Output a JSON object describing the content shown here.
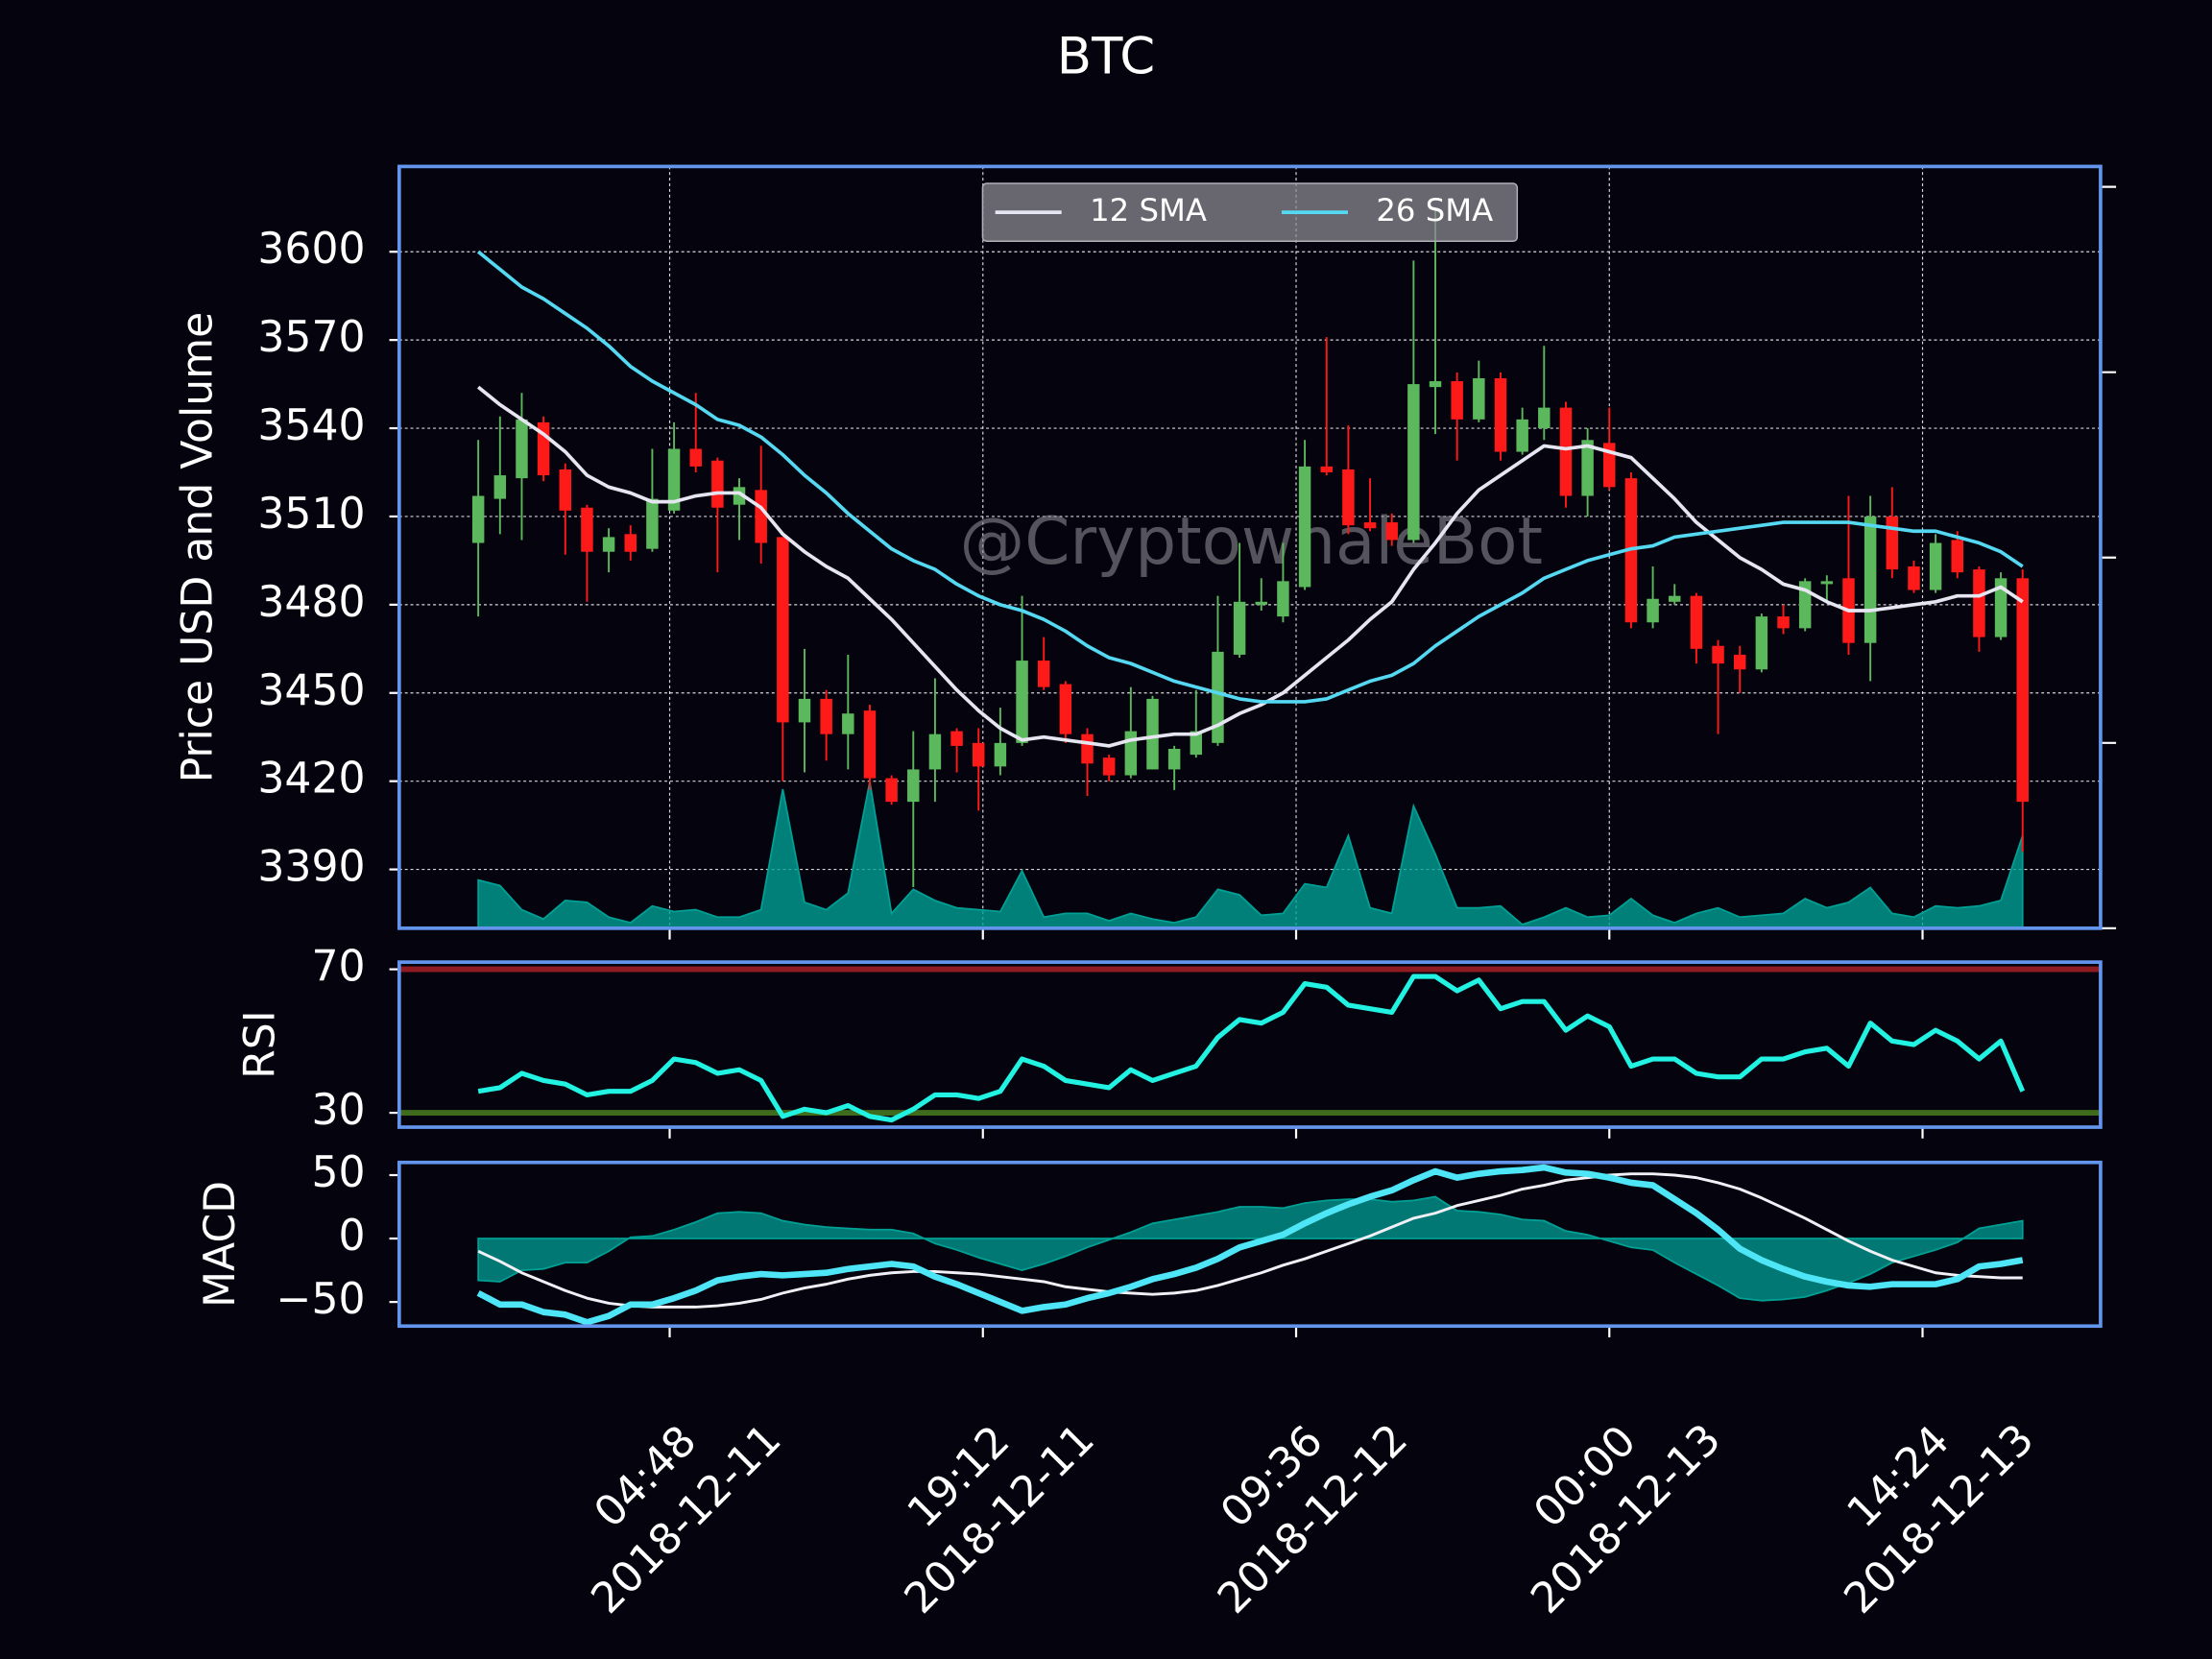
{
  "chart_data": {
    "type": "candlestick",
    "title": "BTC",
    "ylabel": "Price USD and Volume",
    "watermark": "@CryptowhaleBot",
    "x": [
      "2018-12-10 20:00",
      "2018-12-10 21:00",
      "2018-12-10 22:00",
      "2018-12-10 23:00",
      "2018-12-11 00:00",
      "2018-12-11 01:00",
      "2018-12-11 02:00",
      "2018-12-11 03:00",
      "2018-12-11 04:00",
      "2018-12-11 05:00",
      "2018-12-11 06:00",
      "2018-12-11 07:00",
      "2018-12-11 08:00",
      "2018-12-11 09:00",
      "2018-12-11 10:00",
      "2018-12-11 11:00",
      "2018-12-11 12:00",
      "2018-12-11 13:00",
      "2018-12-11 14:00",
      "2018-12-11 15:00",
      "2018-12-11 16:00",
      "2018-12-11 17:00",
      "2018-12-11 18:00",
      "2018-12-11 19:00",
      "2018-12-11 20:00",
      "2018-12-11 21:00",
      "2018-12-11 22:00",
      "2018-12-11 23:00",
      "2018-12-12 00:00",
      "2018-12-12 01:00",
      "2018-12-12 02:00",
      "2018-12-12 03:00",
      "2018-12-12 04:00",
      "2018-12-12 05:00",
      "2018-12-12 06:00",
      "2018-12-12 07:00",
      "2018-12-12 08:00",
      "2018-12-12 09:00",
      "2018-12-12 10:00",
      "2018-12-12 11:00",
      "2018-12-12 12:00",
      "2018-12-12 13:00",
      "2018-12-12 14:00",
      "2018-12-12 15:00",
      "2018-12-12 16:00",
      "2018-12-12 17:00",
      "2018-12-12 18:00",
      "2018-12-12 19:00",
      "2018-12-12 20:00",
      "2018-12-12 21:00",
      "2018-12-12 22:00",
      "2018-12-12 23:00",
      "2018-12-13 00:00",
      "2018-12-13 01:00",
      "2018-12-13 02:00",
      "2018-12-13 03:00",
      "2018-12-13 04:00",
      "2018-12-13 05:00",
      "2018-12-13 06:00",
      "2018-12-13 07:00",
      "2018-12-13 08:00",
      "2018-12-13 09:00",
      "2018-12-13 10:00",
      "2018-12-13 11:00",
      "2018-12-13 12:00",
      "2018-12-13 13:00",
      "2018-12-13 14:00",
      "2018-12-13 15:00",
      "2018-12-13 16:00",
      "2018-12-13 17:00",
      "2018-12-13 18:00",
      "2018-12-13 19:00"
    ],
    "xlim": [
      "2018-12-10 16:22",
      "2018-12-13 22:35"
    ],
    "xticks": [
      {
        "value": "2018-12-11 04:48",
        "label": [
          "04:48",
          "2018-12-11"
        ]
      },
      {
        "value": "2018-12-11 19:12",
        "label": [
          "19:12",
          "2018-12-11"
        ]
      },
      {
        "value": "2018-12-12 09:36",
        "label": [
          "09:36",
          "2018-12-12"
        ]
      },
      {
        "value": "2018-12-13 00:00",
        "label": [
          "00:00",
          "2018-12-13"
        ]
      },
      {
        "value": "2018-12-13 14:24",
        "label": [
          "14:24",
          "2018-12-13"
        ]
      }
    ],
    "ylim": [
      3370,
      3629
    ],
    "yticks": [
      3390,
      3420,
      3450,
      3480,
      3510,
      3540,
      3570,
      3600
    ],
    "grid": true,
    "y2lim": [
      0,
      4.11
    ],
    "y2ticks": [
      0,
      1,
      2,
      3,
      4
    ],
    "up_color": "#5cb85c",
    "down_color": "#ff1a1a",
    "open": [
      3501,
      3516,
      3523,
      3542,
      3526,
      3513,
      3498,
      3504,
      3499,
      3512,
      3533,
      3529,
      3514,
      3519,
      3503,
      3440,
      3448,
      3436,
      3444,
      3421,
      3413,
      3424,
      3437,
      3433,
      3425,
      3433,
      3461,
      3453,
      3436,
      3428,
      3422,
      3424,
      3424,
      3429,
      3433,
      3463,
      3480,
      3476,
      3486,
      3527,
      3526,
      3508,
      3508,
      3502,
      3554,
      3556,
      3543,
      3557,
      3532,
      3540,
      3547,
      3517,
      3535,
      3523,
      3474,
      3481,
      3483,
      3466,
      3463,
      3458,
      3476,
      3472,
      3487,
      3489,
      3467,
      3510,
      3493,
      3485,
      3502,
      3492,
      3469,
      3489
    ],
    "high": [
      3536,
      3544,
      3552,
      3544,
      3528,
      3514,
      3506,
      3507,
      3533,
      3542,
      3552,
      3530,
      3523,
      3534,
      3503,
      3465,
      3451,
      3463,
      3446,
      3422,
      3437,
      3455,
      3438,
      3438,
      3445,
      3483,
      3469,
      3454,
      3438,
      3429,
      3452,
      3449,
      3432,
      3451,
      3483,
      3501,
      3489,
      3501,
      3536,
      3571,
      3541,
      3523,
      3511,
      3597,
      3615,
      3559,
      3563,
      3559,
      3547,
      3568,
      3549,
      3540,
      3547,
      3525,
      3493,
      3487,
      3484,
      3468,
      3466,
      3477,
      3480,
      3489,
      3490,
      3517,
      3517,
      3520,
      3495,
      3504,
      3505,
      3493,
      3491,
      3492
    ],
    "low": [
      3476,
      3504,
      3502,
      3522,
      3497,
      3481,
      3491,
      3495,
      3498,
      3511,
      3525,
      3491,
      3502,
      3494,
      3420,
      3423,
      3427,
      3424,
      3417,
      3412,
      3384,
      3413,
      3423,
      3410,
      3422,
      3432,
      3451,
      3433,
      3415,
      3420,
      3421,
      3424,
      3417,
      3428,
      3432,
      3462,
      3478,
      3474,
      3485,
      3524,
      3504,
      3505,
      3500,
      3501,
      3538,
      3529,
      3542,
      3529,
      3531,
      3536,
      3513,
      3510,
      3519,
      3472,
      3472,
      3480,
      3460,
      3436,
      3450,
      3457,
      3470,
      3471,
      3481,
      3463,
      3454,
      3489,
      3484,
      3484,
      3489,
      3464,
      3468,
      3396
    ],
    "close": [
      3517,
      3524,
      3543,
      3524,
      3512,
      3498,
      3503,
      3498,
      3516,
      3533,
      3527,
      3513,
      3520,
      3501,
      3440,
      3448,
      3436,
      3443,
      3421,
      3413,
      3424,
      3436,
      3432,
      3425,
      3433,
      3461,
      3452,
      3436,
      3426,
      3422,
      3437,
      3448,
      3431,
      3437,
      3464,
      3481,
      3481,
      3488,
      3527,
      3525,
      3507,
      3506,
      3502,
      3555,
      3556,
      3543,
      3557,
      3532,
      3543,
      3547,
      3517,
      3536,
      3520,
      3474,
      3482,
      3483,
      3465,
      3460,
      3458,
      3476,
      3472,
      3488,
      3488,
      3467,
      3510,
      3492,
      3485,
      3501,
      3491,
      3469,
      3489,
      3413
    ],
    "series": [
      {
        "name": "12 SMA",
        "color": "#e6e6f2",
        "values": [
          3554,
          3548,
          3543,
          3538,
          3532,
          3524,
          3520,
          3518,
          3515,
          3515,
          3517,
          3518,
          3518,
          3513,
          3504,
          3498,
          3493,
          3489,
          3482,
          3475,
          3467,
          3459,
          3451,
          3444,
          3438,
          3434,
          3435,
          3434,
          3433,
          3432,
          3434,
          3435,
          3436,
          3436,
          3439,
          3443,
          3446,
          3450,
          3456,
          3462,
          3468,
          3475,
          3481,
          3492,
          3501,
          3511,
          3519,
          3524,
          3529,
          3534,
          3533,
          3534,
          3532,
          3530,
          3523,
          3516,
          3508,
          3502,
          3496,
          3492,
          3487,
          3485,
          3481,
          3478,
          3478,
          3479,
          3480,
          3481,
          3483,
          3483,
          3486,
          3481
        ]
      },
      {
        "name": "26 SMA",
        "color": "#55d8f2",
        "values": [
          3600,
          3594,
          3588,
          3584,
          3579,
          3574,
          3568,
          3561,
          3556,
          3552,
          3548,
          3543,
          3541,
          3537,
          3531,
          3524,
          3518,
          3511,
          3505,
          3499,
          3495,
          3492,
          3487,
          3483,
          3480,
          3478,
          3475,
          3471,
          3466,
          3462,
          3460,
          3457,
          3454,
          3452,
          3450,
          3448,
          3447,
          3447,
          3447,
          3448,
          3451,
          3454,
          3456,
          3460,
          3466,
          3471,
          3476,
          3480,
          3484,
          3489,
          3492,
          3495,
          3497,
          3499,
          3500,
          3503,
          3504,
          3505,
          3506,
          3507,
          3508,
          3508,
          3508,
          3508,
          3507,
          3506,
          3505,
          3505,
          3503,
          3501,
          3498,
          3493
        ]
      }
    ],
    "volume": {
      "axis": "y2",
      "color": "#00a095",
      "values": [
        0.26,
        0.23,
        0.1,
        0.05,
        0.15,
        0.14,
        0.06,
        0.03,
        0.12,
        0.09,
        0.1,
        0.06,
        0.06,
        0.1,
        0.75,
        0.14,
        0.1,
        0.19,
        0.79,
        0.08,
        0.21,
        0.15,
        0.11,
        0.1,
        0.09,
        0.31,
        0.06,
        0.08,
        0.08,
        0.04,
        0.08,
        0.05,
        0.03,
        0.06,
        0.21,
        0.18,
        0.07,
        0.08,
        0.24,
        0.22,
        0.5,
        0.11,
        0.08,
        0.66,
        0.4,
        0.11,
        0.11,
        0.12,
        0.02,
        0.06,
        0.11,
        0.06,
        0.07,
        0.16,
        0.07,
        0.03,
        0.08,
        0.11,
        0.06,
        0.07,
        0.08,
        0.16,
        0.11,
        0.14,
        0.22,
        0.08,
        0.06,
        0.12,
        0.11,
        0.12,
        0.15,
        0.5
      ]
    },
    "legend": "upper center",
    "rsi": {
      "type": "line",
      "ylabel": "RSI",
      "ylim": [
        26,
        72
      ],
      "yticks": [
        30,
        70
      ],
      "upper": 70,
      "upper_color": "#8e1c22",
      "lower": 30,
      "lower_color": "#3f6b1c",
      "color": "#22f2e2",
      "values": [
        36,
        37,
        41,
        39,
        38,
        35,
        36,
        36,
        39,
        45,
        44,
        41,
        42,
        39,
        29,
        31,
        30,
        32,
        29,
        28,
        31,
        35,
        35,
        34,
        36,
        45,
        43,
        39,
        38,
        37,
        42,
        39,
        41,
        43,
        51,
        56,
        55,
        58,
        66,
        65,
        60,
        59,
        58,
        68,
        68,
        64,
        67,
        59,
        61,
        61,
        53,
        57,
        54,
        43,
        45,
        45,
        41,
        40,
        40,
        45,
        45,
        47,
        48,
        43,
        55,
        50,
        49,
        53,
        50,
        45,
        50,
        36
      ]
    },
    "macd": {
      "type": "line",
      "ylabel": "MACD",
      "ylim": [
        -69,
        60
      ],
      "yticks": [
        {
          "value": -50,
          "label": "−50"
        },
        0,
        50
      ],
      "series": [
        {
          "color": "#4ee6f6",
          "values": [
            -43,
            -52,
            -52,
            -58,
            -60,
            -66,
            -61,
            -52,
            -52,
            -47,
            -41,
            -33,
            -30,
            -28,
            -29,
            -28,
            -27,
            -24,
            -22,
            -20,
            -22,
            -30,
            -36,
            -43,
            -50,
            -57,
            -54,
            -52,
            -47,
            -43,
            -38,
            -32,
            -28,
            -23,
            -16,
            -7,
            -2,
            3,
            12,
            20,
            27,
            33,
            38,
            46,
            53,
            48,
            51,
            53,
            54,
            56,
            52,
            51,
            48,
            44,
            42,
            31,
            20,
            7,
            -8,
            -17,
            -24,
            -30,
            -34,
            -37,
            -38,
            -36,
            -36,
            -36,
            -32,
            -22,
            -20,
            -17
          ]
        },
        {
          "color": "#f0f0f6",
          "values": [
            -10,
            -18,
            -27,
            -34,
            -41,
            -47,
            -51,
            -53,
            -54,
            -54,
            -54,
            -53,
            -51,
            -48,
            -43,
            -39,
            -36,
            -32,
            -29,
            -27,
            -26,
            -26,
            -27,
            -28,
            -30,
            -32,
            -34,
            -38,
            -40,
            -42,
            -43,
            -44,
            -43,
            -41,
            -37,
            -32,
            -27,
            -21,
            -16,
            -10,
            -4,
            2,
            9,
            16,
            20,
            26,
            30,
            34,
            39,
            42,
            46,
            48,
            50,
            51,
            51,
            50,
            48,
            44,
            39,
            32,
            24,
            16,
            7,
            -2,
            -10,
            -17,
            -22,
            -27,
            -29,
            -30,
            -31,
            -31
          ]
        }
      ],
      "histogram": {
        "color": "#00a095",
        "values": [
          -33,
          -34,
          -25,
          -24,
          -19,
          -19,
          -10,
          1,
          2,
          7,
          13,
          20,
          21,
          20,
          14,
          11,
          9,
          8,
          7,
          7,
          4,
          -4,
          -9,
          -15,
          -20,
          -25,
          -20,
          -14,
          -7,
          -1,
          5,
          12,
          15,
          18,
          21,
          25,
          25,
          24,
          28,
          30,
          31,
          31,
          29,
          30,
          33,
          22,
          21,
          19,
          15,
          14,
          6,
          3,
          -2,
          -7,
          -9,
          -19,
          -28,
          -37,
          -47,
          -49,
          -48,
          -46,
          -41,
          -35,
          -28,
          -19,
          -14,
          -9,
          -3,
          8,
          11,
          14
        ]
      }
    }
  }
}
